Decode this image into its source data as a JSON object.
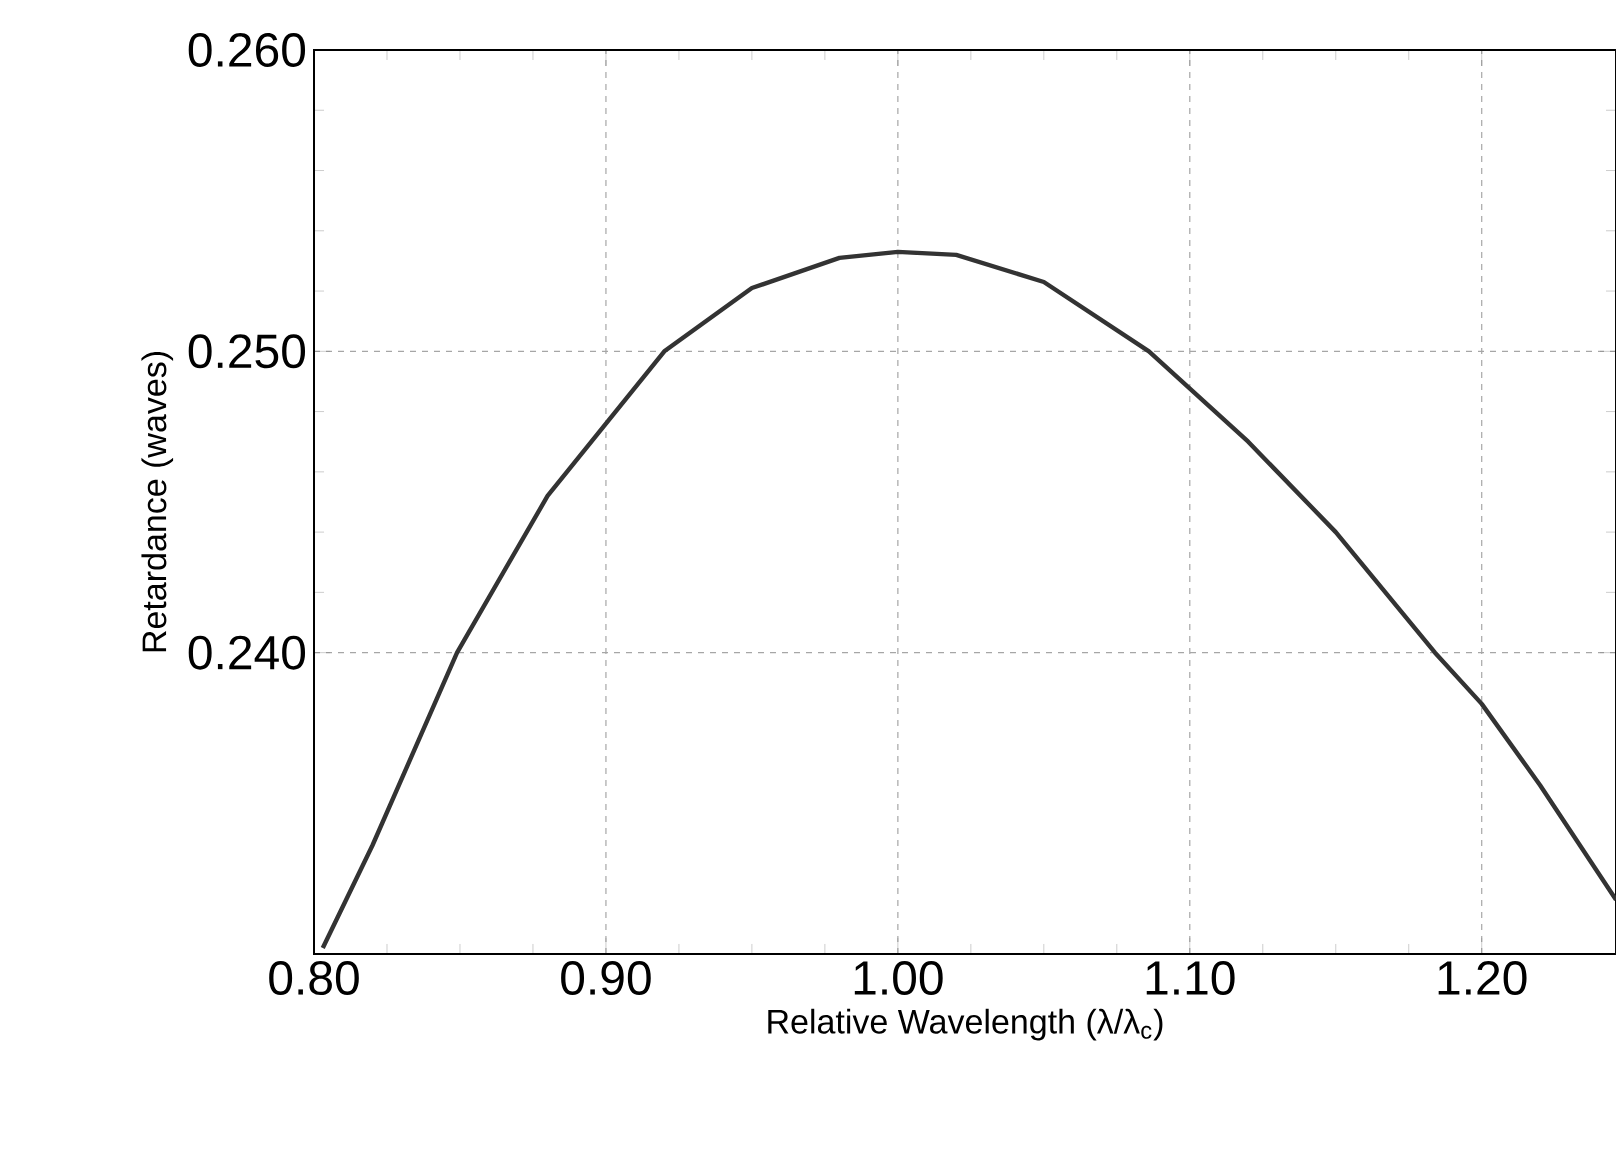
{
  "chart_data": {
    "type": "line",
    "xlabel": "Relative Wavelength (λ/λ$_{c}$)",
    "ylabel": "Retardance (waves)",
    "x": [
      0.803,
      0.82,
      0.849,
      0.88,
      0.92,
      0.95,
      0.98,
      1.0,
      1.02,
      1.05,
      1.086,
      1.12,
      1.15,
      1.184,
      1.2,
      1.22,
      1.246
    ],
    "series": [
      {
        "color": "#333333",
        "values": [
          0.2302,
          0.2336,
          0.24,
          0.2452,
          0.25,
          0.2521,
          0.2531,
          0.2533,
          0.2532,
          0.2523,
          0.25,
          0.247,
          0.244,
          0.24,
          0.2383,
          0.2356,
          0.2318
        ]
      }
    ],
    "xlim": [
      0.8,
      1.246
    ],
    "ylim": [
      0.23,
      0.26
    ],
    "xticks": [
      {
        "value": 0.8,
        "label": "0.80"
      },
      {
        "value": 0.9,
        "label": "0.90"
      },
      {
        "value": 1.0,
        "label": "1.00"
      },
      {
        "value": 1.1,
        "label": "1.10"
      },
      {
        "value": 1.2,
        "label": "1.20"
      }
    ],
    "yticks": [
      {
        "value": 0.24,
        "label": "0.240"
      },
      {
        "value": 0.25,
        "label": "0.250"
      },
      {
        "value": 0.26,
        "label": "0.260"
      }
    ],
    "grid": true,
    "marker": "none",
    "line_style": "solid"
  }
}
